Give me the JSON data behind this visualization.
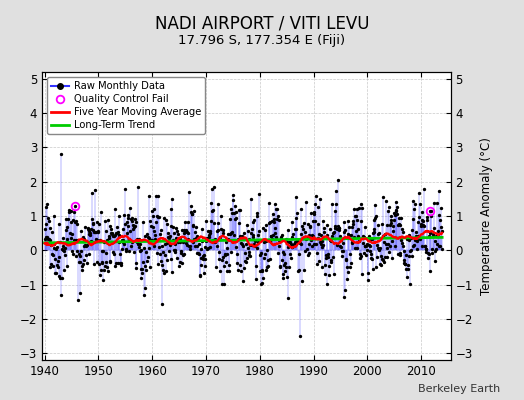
{
  "title": "NADI AIRPORT / VITI LEVU",
  "subtitle": "17.796 S, 177.354 E (Fiji)",
  "ylabel": "Temperature Anomaly (°C)",
  "attribution": "Berkeley Earth",
  "ylim": [
    -3.2,
    5.2
  ],
  "xlim": [
    1939.5,
    2015.5
  ],
  "yticks": [
    -3,
    -2,
    -1,
    0,
    1,
    2,
    3,
    4,
    5
  ],
  "xticks": [
    1940,
    1950,
    1960,
    1970,
    1980,
    1990,
    2000,
    2010
  ],
  "raw_color": "#3333ff",
  "dot_color": "#000000",
  "moving_avg_color": "#ff0000",
  "trend_color": "#00cc00",
  "qc_fail_color": "#ff00ff",
  "bg_color": "#e0e0e0",
  "plot_bg_color": "#ffffff",
  "seed": 42,
  "n_months": 888,
  "start_year": 1940.0,
  "trend_intercept": 0.22,
  "trend_slope": 0.00015,
  "noise_std": 0.52,
  "qc_fail_indices": [
    68,
    860
  ],
  "qc_fail_values": [
    1.3,
    1.15
  ]
}
